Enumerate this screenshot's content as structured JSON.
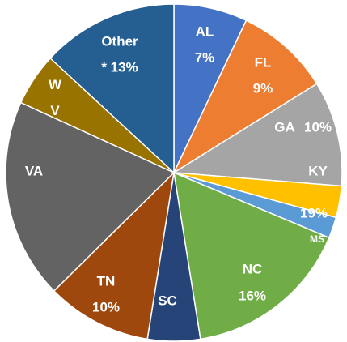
{
  "chart_data": {
    "type": "pie",
    "categories": [
      "AL",
      "FL",
      "GA",
      "KY",
      "MS",
      "NC",
      "SC",
      "TN",
      "VA",
      "W V",
      "Other"
    ],
    "values": [
      7,
      9,
      10,
      3,
      2,
      16,
      5,
      10,
      19,
      5,
      13
    ],
    "value_labels": [
      "7%",
      "9%",
      "10%",
      null,
      null,
      "16%",
      null,
      "10%",
      "19%",
      null,
      "* 13%"
    ],
    "colors": [
      "#4472c4",
      "#ed7d31",
      "#a5a5a5",
      "#ffc000",
      "#5b9bd5",
      "#70ad47",
      "#264478",
      "#9e480e",
      "#636363",
      "#997300",
      "#255e91"
    ]
  }
}
